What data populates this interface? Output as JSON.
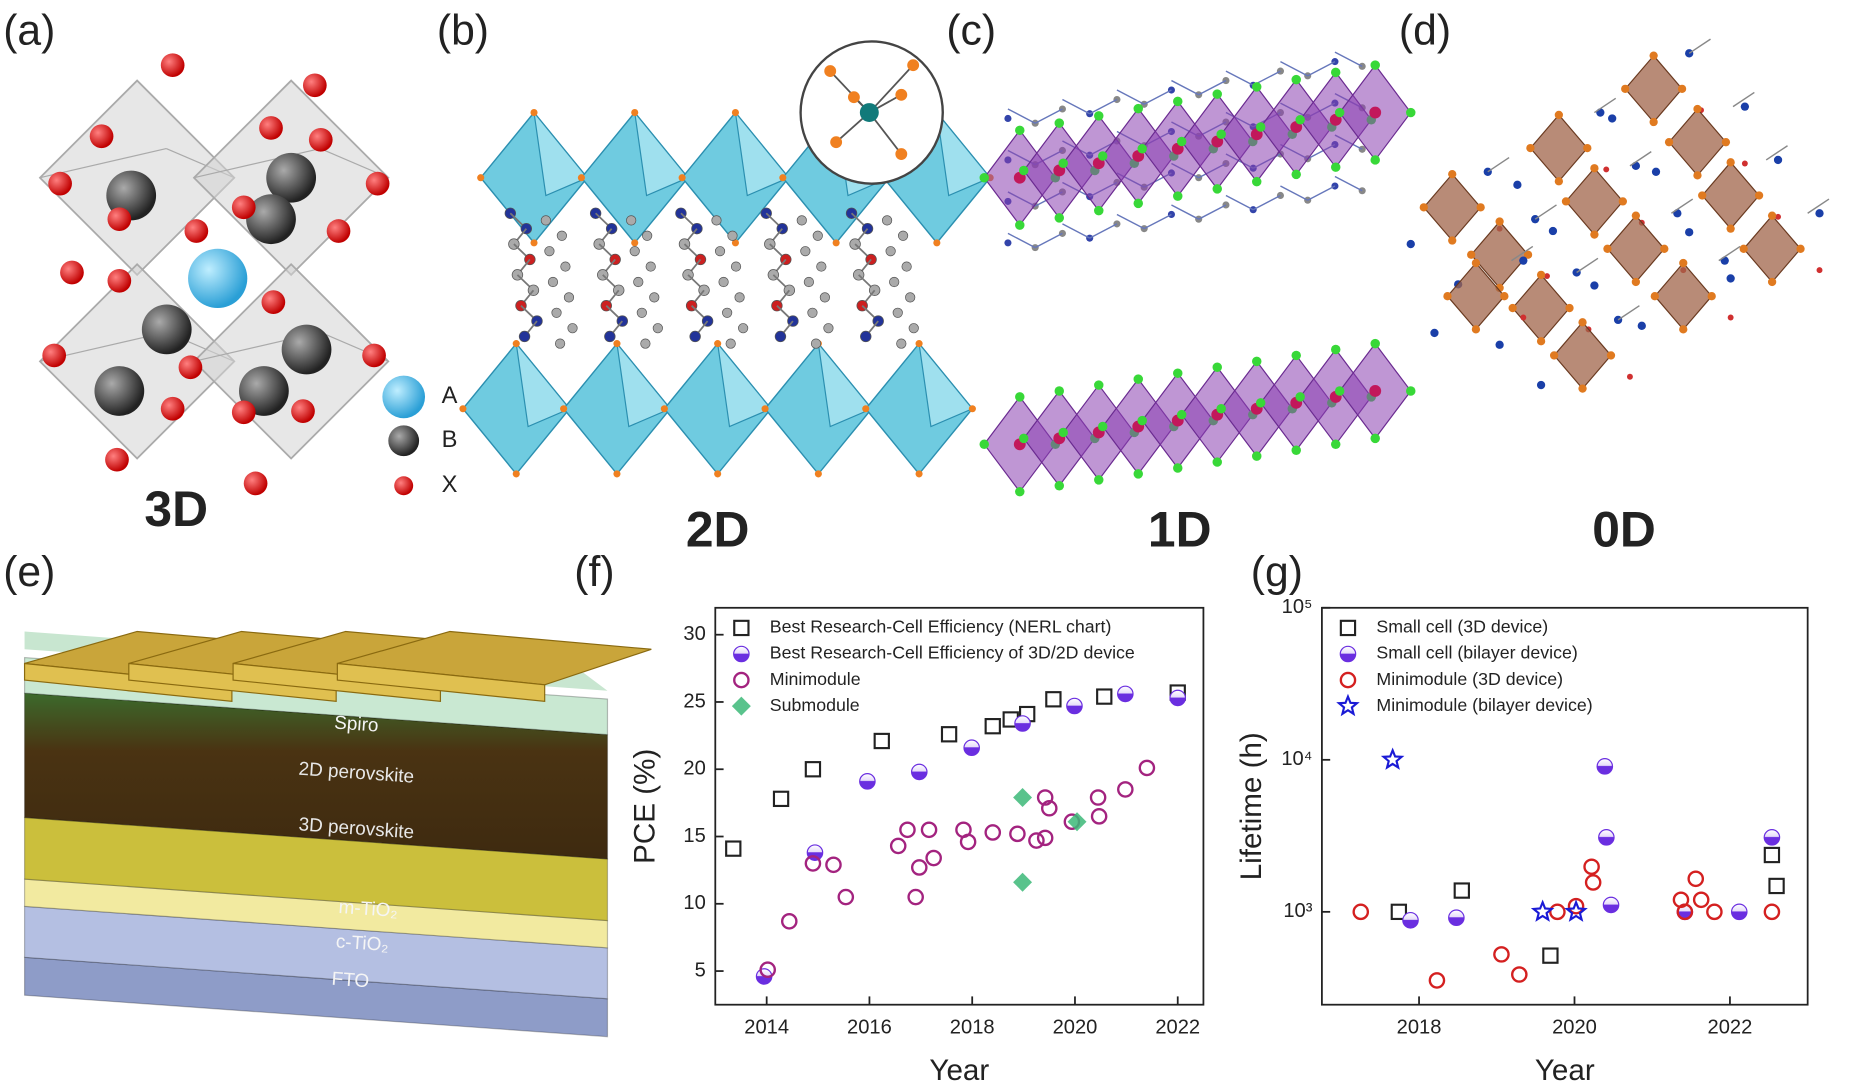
{
  "panel_labels": [
    "(a)",
    "(b)",
    "(c)",
    "(d)",
    "(e)",
    "(f)",
    "(g)"
  ],
  "structure_labels": [
    "3D",
    "2D",
    "1D",
    "0D"
  ],
  "site_legend": [
    "A",
    "B",
    "X"
  ],
  "device_layers": [
    "Spiro",
    "2D perovskite",
    "3D perovskite",
    "m-TiO₂",
    "c-TiO₂",
    "FTO"
  ],
  "chart_data": [
    {
      "type": "scatter",
      "x_label": "Year",
      "y_label": "PCE (%)",
      "xlim": [
        2013,
        2022.5
      ],
      "xticks": [
        2014,
        2016,
        2018,
        2020,
        2022
      ],
      "ylim": [
        2.5,
        32
      ],
      "yticks": [
        5,
        10,
        15,
        20,
        25,
        30
      ],
      "legend": "upper-left",
      "series": [
        {
          "name": "Best Research-Cell Efficiency (NERL chart)",
          "color": "#222222",
          "marker": "square",
          "x": [
            2013.35,
            2014.28,
            2014.9,
            2016.24,
            2017.55,
            2018.4,
            2018.75,
            2019.07,
            2019.58,
            2020.57,
            2022.0
          ],
          "values": [
            14.1,
            17.8,
            20.0,
            22.1,
            22.6,
            23.2,
            23.7,
            24.1,
            25.2,
            25.4,
            25.7
          ]
        },
        {
          "name": "Best Research-Cell Efficiency of 3D/2D device",
          "color": "#6a2ee0",
          "marker": "half-circle",
          "x": [
            2013.95,
            2014.94,
            2015.96,
            2016.97,
            2017.99,
            2018.98,
            2019.99,
            2020.98,
            2022.0
          ],
          "values": [
            4.6,
            13.8,
            19.1,
            19.8,
            21.6,
            23.4,
            24.7,
            25.6,
            25.3
          ]
        },
        {
          "name": "Minimodule",
          "color": "#a3237f",
          "marker": "circle",
          "x": [
            2014.02,
            2014.44,
            2014.9,
            2015.3,
            2015.54,
            2016.56,
            2016.74,
            2016.9,
            2016.97,
            2017.16,
            2017.25,
            2017.83,
            2017.92,
            2018.4,
            2018.88,
            2019.25,
            2019.42,
            2019.42,
            2019.5,
            2019.94,
            2020.45,
            2020.47,
            2020.98,
            2021.4
          ],
          "values": [
            5.1,
            8.7,
            13.0,
            12.9,
            10.5,
            14.3,
            15.5,
            10.5,
            12.7,
            15.5,
            13.4,
            15.5,
            14.6,
            15.3,
            15.2,
            14.7,
            17.9,
            14.9,
            17.1,
            16.1,
            17.9,
            16.5,
            18.5,
            20.1
          ]
        },
        {
          "name": "Submodule",
          "color": "#3cb878",
          "marker": "diamond",
          "x": [
            2018.98,
            2018.98,
            2020.04
          ],
          "values": [
            17.9,
            11.6,
            16.1
          ]
        }
      ]
    },
    {
      "type": "scatter",
      "x_label": "Year",
      "y_label": "Lifetime (h)",
      "xlim": [
        2016.75,
        2023
      ],
      "xticks": [
        2018,
        2020,
        2022
      ],
      "ylim": [
        245,
        100000
      ],
      "ylog": true,
      "yticks": [
        {
          "value": 1000,
          "label": "10³"
        },
        {
          "value": 10000,
          "label": "10⁴"
        },
        {
          "value": 100000,
          "label": "10⁵"
        }
      ],
      "legend": "upper-left",
      "series": [
        {
          "name": "Small cell (3D device)",
          "color": "#222222",
          "marker": "square",
          "x": [
            2017.74,
            2018.55,
            2019.69,
            2022.54,
            2022.6
          ],
          "values": [
            1000,
            1380,
            515,
            2365,
            1480
          ]
        },
        {
          "name": "Small cell (bilayer device)",
          "color": "#6a2ee0",
          "marker": "half-circle",
          "x": [
            2017.89,
            2018.48,
            2020.39,
            2020.41,
            2020.47,
            2021.42,
            2022.12,
            2022.54
          ],
          "values": [
            880,
            915,
            9060,
            3090,
            1110,
            1000,
            1000,
            3090
          ]
        },
        {
          "name": "Minimodule (3D device)",
          "color": "#d42020",
          "marker": "circle",
          "x": [
            2017.25,
            2018.23,
            2019.06,
            2019.29,
            2019.78,
            2020.02,
            2020.22,
            2020.24,
            2021.37,
            2021.42,
            2021.56,
            2021.63,
            2021.8,
            2022.54
          ],
          "values": [
            1000,
            354,
            525,
            387,
            1000,
            1090,
            1980,
            1560,
            1200,
            1000,
            1650,
            1200,
            1000,
            1000
          ]
        },
        {
          "name": "Minimodule (bilayer device)",
          "color": "#1a1ad6",
          "marker": "star",
          "x": [
            2017.66,
            2019.59,
            2020.02
          ],
          "values": [
            10000,
            1000,
            1000
          ]
        }
      ]
    }
  ]
}
